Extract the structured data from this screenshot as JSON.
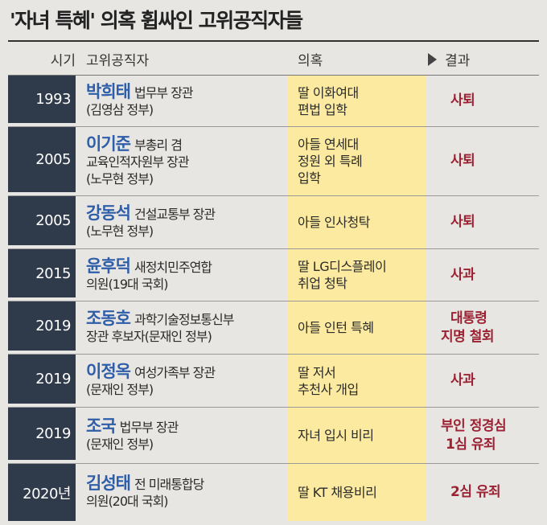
{
  "title": "'자녀 특혜' 의혹 휩싸인 고위공직자들",
  "headers": {
    "year": "시기",
    "official": "고위공직자",
    "suspicion": "의혹",
    "result": "결과"
  },
  "rows": [
    {
      "year": "1993",
      "name": "박희태",
      "desc1": "법무부 장관",
      "desc2": "(김영삼 정부)",
      "desc3": "",
      "sus1": "딸 이화여대",
      "sus2": "편법 입학",
      "sus3": "",
      "res1": "사퇴",
      "res2": ""
    },
    {
      "year": "2005",
      "name": "이기준",
      "desc1": "부총리 겸",
      "desc2": "교육인적자원부 장관",
      "desc3": "(노무현 정부)",
      "sus1": "아들 연세대",
      "sus2": "정원 외 특례",
      "sus3": "입학",
      "res1": "사퇴",
      "res2": ""
    },
    {
      "year": "2005",
      "name": "강동석",
      "desc1": "건설교통부 장관",
      "desc2": "(노무현 정부)",
      "desc3": "",
      "sus1": "아들 인사청탁",
      "sus2": "",
      "sus3": "",
      "res1": "사퇴",
      "res2": ""
    },
    {
      "year": "2015",
      "name": "윤후덕",
      "desc1": "새정치민주연합",
      "desc2": "의원(19대 국회)",
      "desc3": "",
      "sus1": "딸 LG디스플레이",
      "sus2": "취업 청탁",
      "sus3": "",
      "res1": "사과",
      "res2": ""
    },
    {
      "year": "2019",
      "name": "조동호",
      "desc1": "과학기술정보통신부",
      "desc2": "장관 후보자(문재인 정부)",
      "desc3": "",
      "sus1": "아들 인턴 특혜",
      "sus2": "",
      "sus3": "",
      "res1": "대통령",
      "res2": "지명 철회"
    },
    {
      "year": "2019",
      "name": "이정옥",
      "desc1": "여성가족부 장관",
      "desc2": "(문재인 정부)",
      "desc3": "",
      "sus1": "딸 저서",
      "sus2": "추천사 개입",
      "sus3": "",
      "res1": "사과",
      "res2": ""
    },
    {
      "year": "2019",
      "name": "조국",
      "desc1": "법무부 장관",
      "desc2": "(문재인 정부)",
      "desc3": "",
      "sus1": "자녀 입시 비리",
      "sus2": "",
      "sus3": "",
      "res1": "부인 정경심",
      "res2": "1심 유죄"
    },
    {
      "year": "2020년",
      "name": "김성태",
      "desc1": "전 미래통합당",
      "desc2": "의원(20대 국회)",
      "desc3": "",
      "sus1": "딸 KT 채용비리",
      "sus2": "",
      "sus3": "",
      "res1": "2심 유죄",
      "res2": ""
    }
  ]
}
